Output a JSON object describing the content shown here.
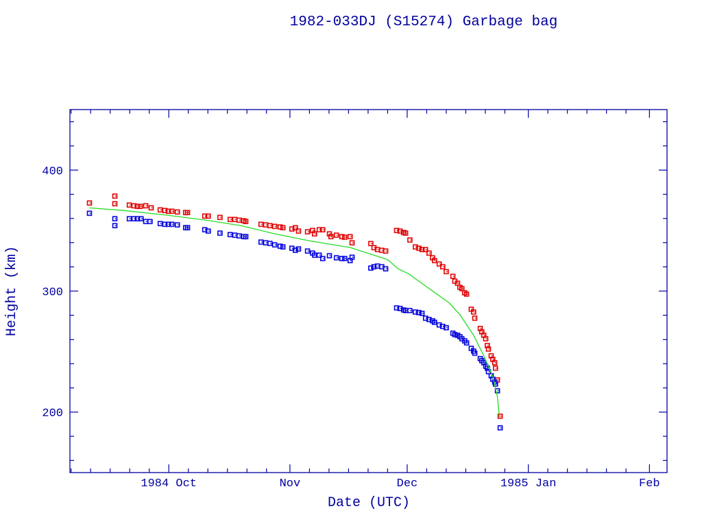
{
  "chart_data": {
    "type": "scatter",
    "title": "1982-033DJ (S15274) Garbage bag",
    "xlabel": "Date (UTC)",
    "ylabel": "Height (km)",
    "x_units": "days since 1984 Oct 1",
    "xlim": [
      -25.3,
      127.5
    ],
    "ylim": [
      150,
      450
    ],
    "grid": false,
    "x_ticks": [
      {
        "day": 0,
        "label": "1984 Oct"
      },
      {
        "day": 31,
        "label": "Nov"
      },
      {
        "day": 61,
        "label": "Dec"
      },
      {
        "day": 92,
        "label": "1985 Jan"
      },
      {
        "day": 123,
        "label": "Feb"
      }
    ],
    "y_ticks": [
      {
        "value": 200,
        "label": "200"
      },
      {
        "value": 300,
        "label": "300"
      },
      {
        "value": 400,
        "label": "400"
      }
    ],
    "colors": {
      "axis": "#0000a0",
      "apogee": "#e00000",
      "perigee": "#0000dd",
      "mean": "#22dd22"
    },
    "series": [
      {
        "name": "apogee",
        "kind": "points",
        "color": "#e00000",
        "points": [
          [
            -20.3,
            372.8
          ],
          [
            -13.8,
            378.5
          ],
          [
            -13.8,
            372.2
          ],
          [
            -10.1,
            371.1
          ],
          [
            -8.9,
            370.5
          ],
          [
            -8.0,
            370.0
          ],
          [
            -7.3,
            370.0
          ],
          [
            -5.9,
            370.5
          ],
          [
            -4.5,
            368.8
          ],
          [
            -2.2,
            367.1
          ],
          [
            -1.0,
            366.6
          ],
          [
            -0.1,
            366.0
          ],
          [
            0.8,
            366.0
          ],
          [
            2.2,
            365.4
          ],
          [
            4.3,
            364.9
          ],
          [
            4.8,
            364.9
          ],
          [
            9.2,
            362.0
          ],
          [
            10.1,
            362.0
          ],
          [
            13.1,
            360.9
          ],
          [
            15.7,
            359.2
          ],
          [
            16.9,
            359.2
          ],
          [
            18.0,
            358.6
          ],
          [
            19.2,
            358.1
          ],
          [
            19.7,
            357.5
          ],
          [
            23.6,
            355.2
          ],
          [
            24.8,
            354.7
          ],
          [
            25.9,
            354.1
          ],
          [
            27.1,
            353.5
          ],
          [
            28.5,
            353.0
          ],
          [
            29.2,
            352.4
          ],
          [
            31.5,
            351.3
          ],
          [
            32.4,
            352.4
          ],
          [
            33.2,
            349.6
          ],
          [
            35.5,
            349.0
          ],
          [
            36.8,
            350.1
          ],
          [
            37.3,
            347.3
          ],
          [
            38.5,
            350.7
          ],
          [
            39.4,
            350.7
          ],
          [
            41.1,
            347.3
          ],
          [
            41.5,
            345.0
          ],
          [
            42.9,
            346.2
          ],
          [
            44.3,
            345.0
          ],
          [
            45.0,
            344.5
          ],
          [
            46.4,
            345.0
          ],
          [
            46.9,
            339.9
          ],
          [
            51.7,
            339.3
          ],
          [
            52.5,
            335.9
          ],
          [
            53.4,
            334.3
          ],
          [
            54.5,
            333.7
          ],
          [
            55.5,
            333.1
          ],
          [
            58.3,
            350.1
          ],
          [
            59.2,
            349.6
          ],
          [
            60.1,
            348.4
          ],
          [
            60.6,
            347.9
          ],
          [
            61.7,
            342.2
          ],
          [
            63.1,
            336.5
          ],
          [
            64.0,
            335.4
          ],
          [
            64.8,
            334.3
          ],
          [
            65.7,
            334.3
          ],
          [
            66.6,
            331.4
          ],
          [
            67.5,
            327.5
          ],
          [
            68.0,
            325.2
          ],
          [
            69.2,
            322.4
          ],
          [
            70.1,
            320.1
          ],
          [
            71.0,
            316.1
          ],
          [
            72.7,
            312.2
          ],
          [
            73.2,
            308.2
          ],
          [
            73.9,
            306.5
          ],
          [
            74.5,
            303.1
          ],
          [
            75.0,
            302.0
          ],
          [
            75.7,
            298.6
          ],
          [
            76.2,
            297.5
          ],
          [
            77.4,
            285.0
          ],
          [
            78.0,
            282.7
          ],
          [
            78.3,
            277.6
          ],
          [
            79.7,
            269.1
          ],
          [
            80.1,
            266.3
          ],
          [
            80.6,
            263.5
          ],
          [
            81.1,
            260.6
          ],
          [
            81.5,
            255.0
          ],
          [
            81.8,
            252.1
          ],
          [
            82.5,
            246.5
          ],
          [
            82.9,
            243.6
          ],
          [
            83.4,
            240.8
          ],
          [
            83.6,
            236.3
          ],
          [
            84.1,
            226.6
          ],
          [
            84.8,
            196.6
          ]
        ]
      },
      {
        "name": "perigee",
        "kind": "points",
        "color": "#0000dd",
        "points": [
          [
            -20.3,
            364.3
          ],
          [
            -13.8,
            359.8
          ],
          [
            -13.8,
            354.1
          ],
          [
            -10.1,
            359.8
          ],
          [
            -8.9,
            359.8
          ],
          [
            -8.0,
            359.8
          ],
          [
            -7.1,
            359.8
          ],
          [
            -5.9,
            357.5
          ],
          [
            -4.8,
            357.5
          ],
          [
            -2.2,
            355.8
          ],
          [
            -1.0,
            355.2
          ],
          [
            -0.1,
            355.2
          ],
          [
            0.8,
            355.2
          ],
          [
            2.2,
            354.7
          ],
          [
            4.3,
            352.4
          ],
          [
            4.8,
            352.4
          ],
          [
            9.2,
            350.7
          ],
          [
            10.1,
            349.6
          ],
          [
            13.1,
            347.9
          ],
          [
            15.7,
            346.7
          ],
          [
            16.9,
            346.2
          ],
          [
            18.0,
            345.6
          ],
          [
            19.2,
            345.0
          ],
          [
            19.7,
            345.0
          ],
          [
            23.6,
            340.5
          ],
          [
            24.8,
            339.9
          ],
          [
            25.9,
            339.4
          ],
          [
            27.1,
            338.2
          ],
          [
            28.5,
            337.1
          ],
          [
            29.2,
            336.5
          ],
          [
            31.5,
            335.4
          ],
          [
            32.4,
            333.7
          ],
          [
            33.2,
            334.8
          ],
          [
            35.5,
            333.1
          ],
          [
            36.8,
            331.4
          ],
          [
            37.3,
            329.7
          ],
          [
            38.5,
            329.7
          ],
          [
            39.4,
            326.9
          ],
          [
            41.1,
            329.2
          ],
          [
            42.9,
            327.5
          ],
          [
            44.3,
            326.9
          ],
          [
            45.0,
            326.9
          ],
          [
            46.4,
            325.2
          ],
          [
            46.9,
            328.0
          ],
          [
            51.7,
            319.0
          ],
          [
            52.5,
            320.1
          ],
          [
            53.4,
            320.7
          ],
          [
            54.5,
            320.1
          ],
          [
            55.5,
            318.4
          ],
          [
            58.3,
            286.1
          ],
          [
            59.2,
            285.6
          ],
          [
            60.1,
            284.4
          ],
          [
            60.6,
            283.9
          ],
          [
            61.7,
            283.9
          ],
          [
            63.1,
            282.7
          ],
          [
            64.0,
            282.2
          ],
          [
            64.8,
            281.6
          ],
          [
            65.7,
            277.6
          ],
          [
            66.6,
            276.5
          ],
          [
            67.5,
            275.4
          ],
          [
            68.0,
            274.2
          ],
          [
            69.2,
            272.0
          ],
          [
            70.1,
            270.8
          ],
          [
            71.0,
            269.7
          ],
          [
            72.7,
            265.2
          ],
          [
            73.2,
            264.0
          ],
          [
            73.9,
            263.5
          ],
          [
            74.5,
            262.3
          ],
          [
            75.0,
            260.6
          ],
          [
            75.7,
            258.9
          ],
          [
            76.2,
            257.2
          ],
          [
            77.4,
            252.7
          ],
          [
            78.0,
            250.4
          ],
          [
            78.3,
            248.7
          ],
          [
            79.7,
            244.2
          ],
          [
            80.1,
            242.5
          ],
          [
            80.6,
            240.8
          ],
          [
            81.1,
            237.9
          ],
          [
            81.5,
            236.3
          ],
          [
            81.8,
            233.4
          ],
          [
            82.5,
            230.0
          ],
          [
            82.9,
            227.2
          ],
          [
            83.4,
            224.9
          ],
          [
            83.6,
            223.2
          ],
          [
            84.1,
            217.6
          ],
          [
            84.8,
            187.0
          ]
        ]
      },
      {
        "name": "mean",
        "kind": "line",
        "color": "#22dd22",
        "points": [
          [
            -20.3,
            368.8
          ],
          [
            -11.5,
            366.6
          ],
          [
            -0.1,
            362.6
          ],
          [
            9.6,
            358.6
          ],
          [
            18.4,
            354.1
          ],
          [
            27.1,
            347.3
          ],
          [
            35.9,
            341.6
          ],
          [
            46.4,
            336.0
          ],
          [
            55.2,
            326.9
          ],
          [
            56.1,
            325.8
          ],
          [
            58.7,
            318.4
          ],
          [
            61.3,
            314.4
          ],
          [
            65.7,
            304.2
          ],
          [
            71.8,
            290.1
          ],
          [
            74.5,
            280.5
          ],
          [
            78.0,
            263.5
          ],
          [
            80.6,
            246.5
          ],
          [
            82.9,
            229.5
          ],
          [
            84.1,
            212.5
          ],
          [
            84.6,
            195.5
          ]
        ]
      }
    ]
  }
}
